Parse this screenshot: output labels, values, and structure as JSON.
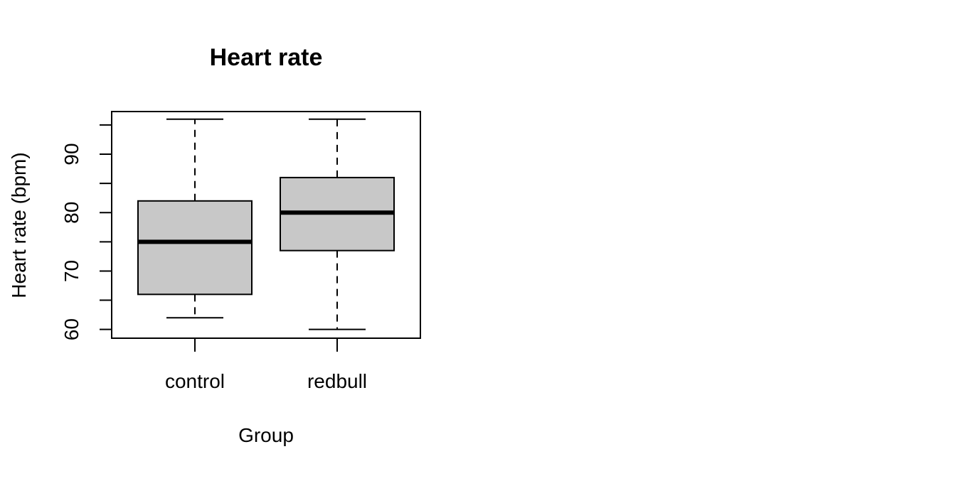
{
  "chart_data": {
    "type": "boxplot",
    "title": "Heart rate",
    "xlabel": "Group",
    "ylabel": "Heart rate (bpm)",
    "ylim": [
      58.5,
      97.3
    ],
    "y_ticks": [
      60,
      70,
      80,
      90
    ],
    "y_ticks_minor": [
      65,
      75,
      85,
      95
    ],
    "grid": false,
    "legend": "none",
    "colors": {
      "box_fill": "#c8c8c8",
      "stroke": "#000000"
    },
    "categories": [
      "control",
      "redbull"
    ],
    "boxes": [
      {
        "name": "control",
        "min": 62,
        "q1": 66,
        "median": 75,
        "q3": 82,
        "max": 96
      },
      {
        "name": "redbull",
        "min": 60,
        "q1": 73.5,
        "median": 80,
        "q3": 86,
        "max": 96
      }
    ]
  }
}
